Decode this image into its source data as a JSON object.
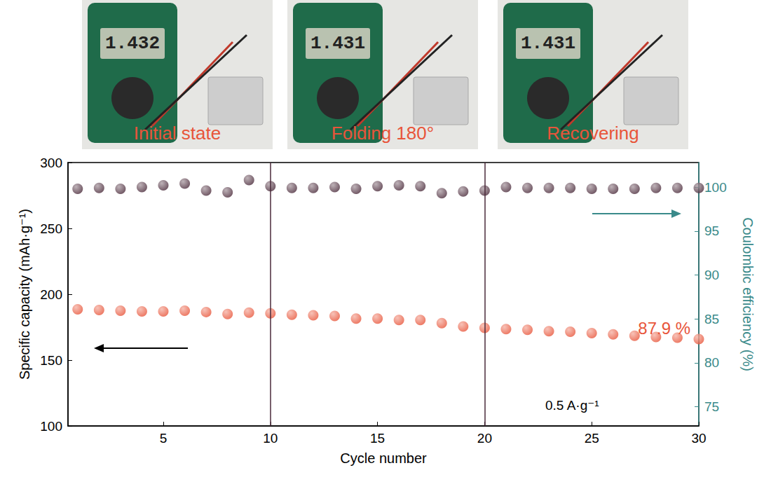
{
  "chart_data": {
    "type": "scatter",
    "x": [
      1,
      2,
      3,
      4,
      5,
      6,
      7,
      8,
      9,
      10,
      11,
      12,
      13,
      14,
      15,
      16,
      17,
      18,
      19,
      20,
      21,
      22,
      23,
      24,
      25,
      26,
      27,
      28,
      29,
      30
    ],
    "series": [
      {
        "name": "Specific capacity",
        "color": "#e8553a",
        "marker": "circle",
        "values": [
          188.5,
          188,
          187.5,
          187,
          187,
          187.5,
          186.5,
          185,
          186,
          185.5,
          184.5,
          184,
          183.5,
          181.5,
          181.5,
          180.5,
          180.5,
          178,
          175.5,
          174.5,
          173.5,
          173,
          172,
          171.5,
          170.5,
          169.5,
          168.5,
          167.5,
          167,
          166
        ]
      },
      {
        "name": "Coulombic efficiency",
        "color": "#4a2a3a",
        "marker": "circle",
        "axis": "y2",
        "values": [
          99.8,
          99.9,
          99.8,
          100,
          100.2,
          100.4,
          99.6,
          99.4,
          100.8,
          100.1,
          99.9,
          99.9,
          100,
          99.8,
          100.1,
          100.2,
          100.1,
          99.3,
          99.5,
          99.6,
          100,
          99.9,
          99.9,
          99.9,
          99.8,
          99.8,
          99.8,
          99.9,
          99.9,
          99.9
        ]
      }
    ],
    "x_label": "Cycle number",
    "y_label": "Specific capacity (mAh·g⁻¹)",
    "y2_label": "Coulombic efficiency (%)",
    "xlim": [
      0.55,
      30
    ],
    "xticks": [
      5,
      10,
      15,
      20,
      25,
      30
    ],
    "ylim": [
      100,
      300
    ],
    "yticks": [
      100,
      150,
      200,
      250,
      300
    ],
    "y2lim": [
      72.8,
      102.8
    ],
    "y2ticks": [
      75,
      80,
      85,
      90,
      95,
      100
    ],
    "vlines": [
      10,
      20
    ],
    "annotations": [
      "87.9 %",
      "0.5 A·g⁻¹"
    ],
    "grid": false
  },
  "photos": [
    {
      "label": "Initial state",
      "reading": "1.432"
    },
    {
      "label": "Folding 180°",
      "reading": "1.431"
    },
    {
      "label": "Recovering",
      "reading": "1.431"
    }
  ]
}
